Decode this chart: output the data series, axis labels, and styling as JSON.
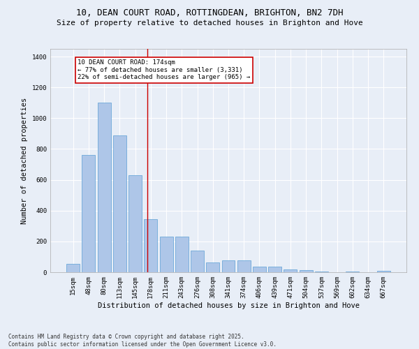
{
  "title_line1": "10, DEAN COURT ROAD, ROTTINGDEAN, BRIGHTON, BN2 7DH",
  "title_line2": "Size of property relative to detached houses in Brighton and Hove",
  "xlabel": "Distribution of detached houses by size in Brighton and Hove",
  "ylabel": "Number of detached properties",
  "categories": [
    "15sqm",
    "48sqm",
    "80sqm",
    "113sqm",
    "145sqm",
    "178sqm",
    "211sqm",
    "243sqm",
    "276sqm",
    "308sqm",
    "341sqm",
    "374sqm",
    "406sqm",
    "439sqm",
    "471sqm",
    "504sqm",
    "537sqm",
    "569sqm",
    "602sqm",
    "634sqm",
    "667sqm"
  ],
  "values": [
    55,
    760,
    1100,
    890,
    630,
    345,
    230,
    230,
    140,
    65,
    75,
    75,
    35,
    35,
    20,
    12,
    5,
    2,
    5,
    2,
    8
  ],
  "bar_color": "#aec6e8",
  "bar_edge_color": "#5a9fd4",
  "vline_x": 4.77,
  "vline_color": "#cc0000",
  "annotation_text": "10 DEAN COURT ROAD: 174sqm\n← 77% of detached houses are smaller (3,331)\n22% of semi-detached houses are larger (965) →",
  "annotation_box_color": "#cc0000",
  "ylim": [
    0,
    1450
  ],
  "yticks": [
    0,
    200,
    400,
    600,
    800,
    1000,
    1200,
    1400
  ],
  "background_color": "#e8eef7",
  "grid_color": "#ffffff",
  "footer_text": "Contains HM Land Registry data © Crown copyright and database right 2025.\nContains public sector information licensed under the Open Government Licence v3.0.",
  "title_fontsize": 9,
  "subtitle_fontsize": 8,
  "axis_label_fontsize": 7.5,
  "tick_fontsize": 6.5,
  "annotation_fontsize": 6.5,
  "footer_fontsize": 5.5
}
